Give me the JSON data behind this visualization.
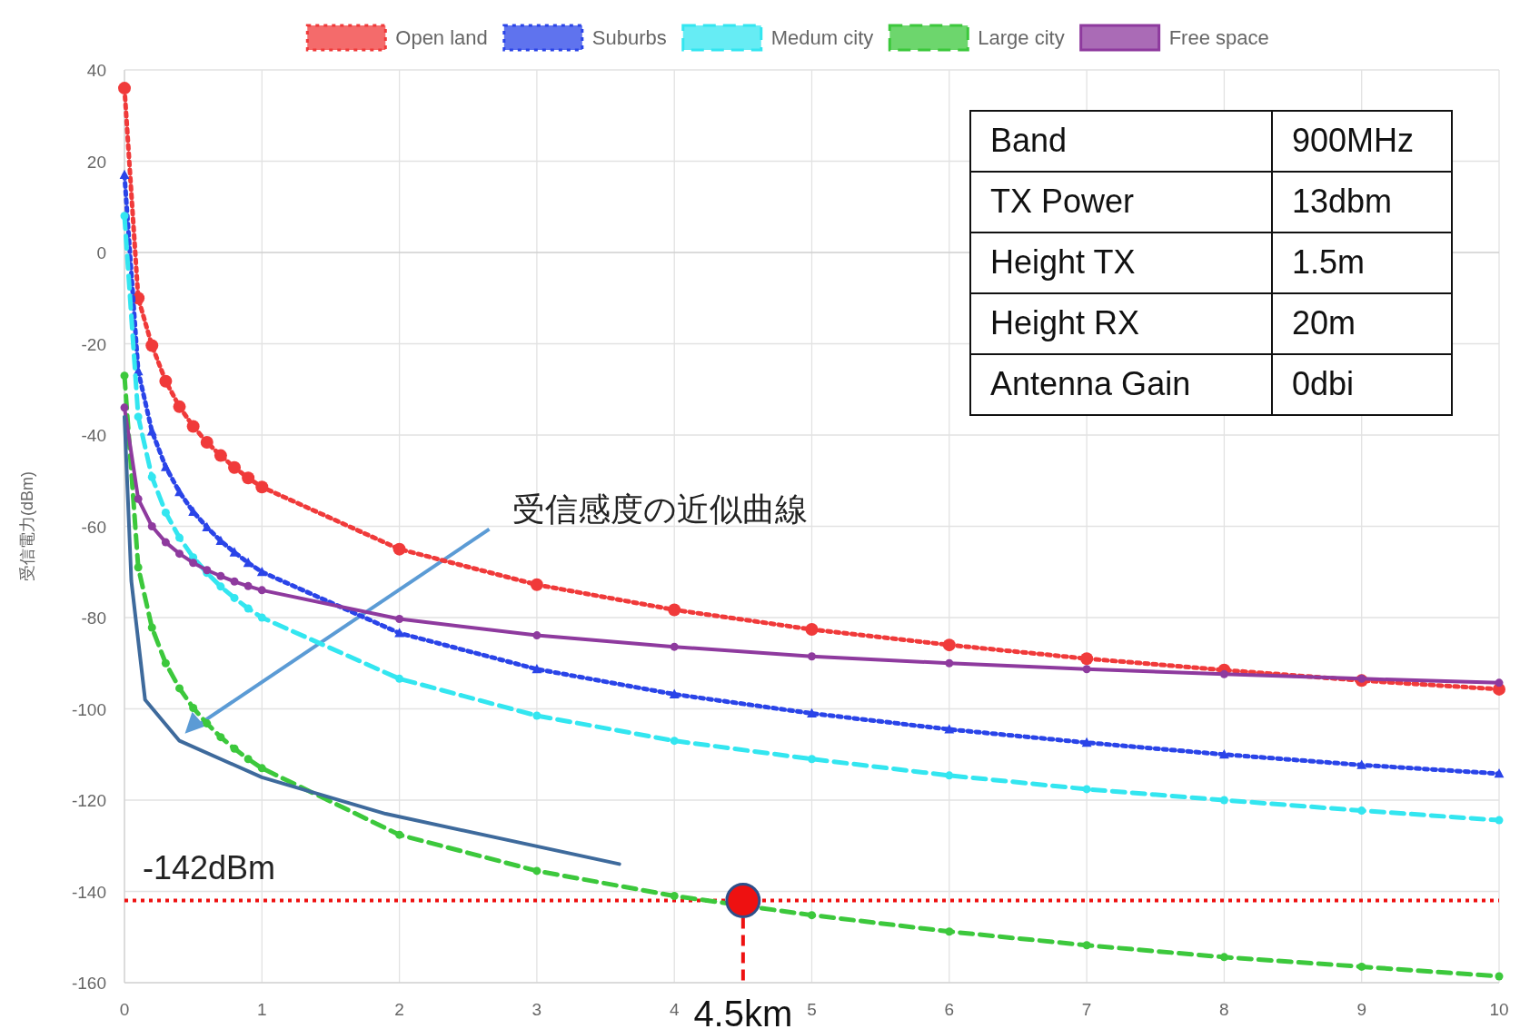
{
  "chart_data": {
    "type": "line",
    "ylabel": "受信電力(dBm)",
    "x": [
      0,
      0.1,
      0.2,
      0.3,
      0.4,
      0.5,
      0.6,
      0.7,
      0.8,
      0.9,
      1,
      2,
      3,
      4,
      5,
      6,
      7,
      8,
      9,
      10
    ],
    "xlim": [
      0,
      10
    ],
    "xticks": [
      0,
      1,
      2,
      3,
      4,
      5,
      6,
      7,
      8,
      9,
      10
    ],
    "ylim": [
      -160,
      40
    ],
    "yticks": [
      -160,
      -140,
      -120,
      -100,
      -80,
      -60,
      -40,
      -20,
      0,
      20,
      40
    ],
    "grid": true,
    "legend": "top",
    "series": [
      {
        "name": "Open land",
        "color": "#f03a3a",
        "marker": "circle",
        "line_style": "dotted",
        "values": [
          36,
          -10,
          -20.4,
          -28.2,
          -33.8,
          -38.1,
          -41.6,
          -44.5,
          -47.1,
          -49.4,
          -51.4,
          -65,
          -72.8,
          -78.3,
          -82.6,
          -86,
          -89,
          -91.5,
          -93.8,
          -95.7
        ]
      },
      {
        "name": "Suburbs",
        "color": "#2a44e8",
        "marker": "triangle",
        "line_style": "dotted",
        "values": [
          17,
          -26,
          -39.2,
          -47,
          -52.5,
          -56.8,
          -60.2,
          -63.2,
          -65.7,
          -68,
          -70,
          -83.4,
          -91.3,
          -96.8,
          -101,
          -104.5,
          -107.4,
          -110,
          -112.3,
          -114.2
        ]
      },
      {
        "name": "Medum city",
        "color": "#33e6f0",
        "marker": "circle",
        "line_style": "dashed",
        "values": [
          8,
          -36,
          -49.2,
          -57,
          -62.5,
          -66.8,
          -70.2,
          -73.2,
          -75.7,
          -78,
          -80,
          -93.4,
          -101.5,
          -107,
          -111,
          -114.6,
          -117.6,
          -120,
          -122.3,
          -124.4
        ]
      },
      {
        "name": "Large city",
        "color": "#3cc83c",
        "marker": "circle",
        "line_style": "dashed",
        "values": [
          -27,
          -69,
          -82.2,
          -90,
          -95.5,
          -99.8,
          -103.2,
          -106.2,
          -108.7,
          -111,
          -113,
          -127.6,
          -135.5,
          -141,
          -145.2,
          -148.8,
          -151.8,
          -154.4,
          -156.5,
          -158.6
        ]
      },
      {
        "name": "Free space",
        "color": "#8e3a9e",
        "marker": "circle",
        "line_style": "solid",
        "values": [
          -34,
          -54,
          -60,
          -63.5,
          -66,
          -68,
          -69.6,
          -70.9,
          -72.1,
          -73.1,
          -74,
          -80.3,
          -83.9,
          -86.4,
          -88.5,
          -90,
          -91.3,
          -92.4,
          -93.4,
          -94.3
        ]
      },
      {
        "color": "#3e6a9c",
        "marker": "none",
        "line_style": "solid",
        "x": [
          0,
          0.05,
          0.15,
          0.4,
          1,
          1.9,
          3.6
        ],
        "values": [
          -36,
          -72,
          -98,
          -107,
          -115,
          -123,
          -134
        ]
      }
    ],
    "ref_lines": [
      {
        "axis": "y",
        "value": -142,
        "label": "-142dBm",
        "color": "#ee1111",
        "line_style": "dotted"
      }
    ],
    "annotations": [
      "受信感度の近似曲線",
      {
        "text": "4.5km",
        "x": 4.5,
        "y": -142
      },
      "Band",
      "900MHz",
      "TX Power",
      "13dbm",
      "Height TX",
      "1.5m",
      "Height RX",
      "20m",
      "Antenna Gain",
      "0dbi"
    ]
  }
}
